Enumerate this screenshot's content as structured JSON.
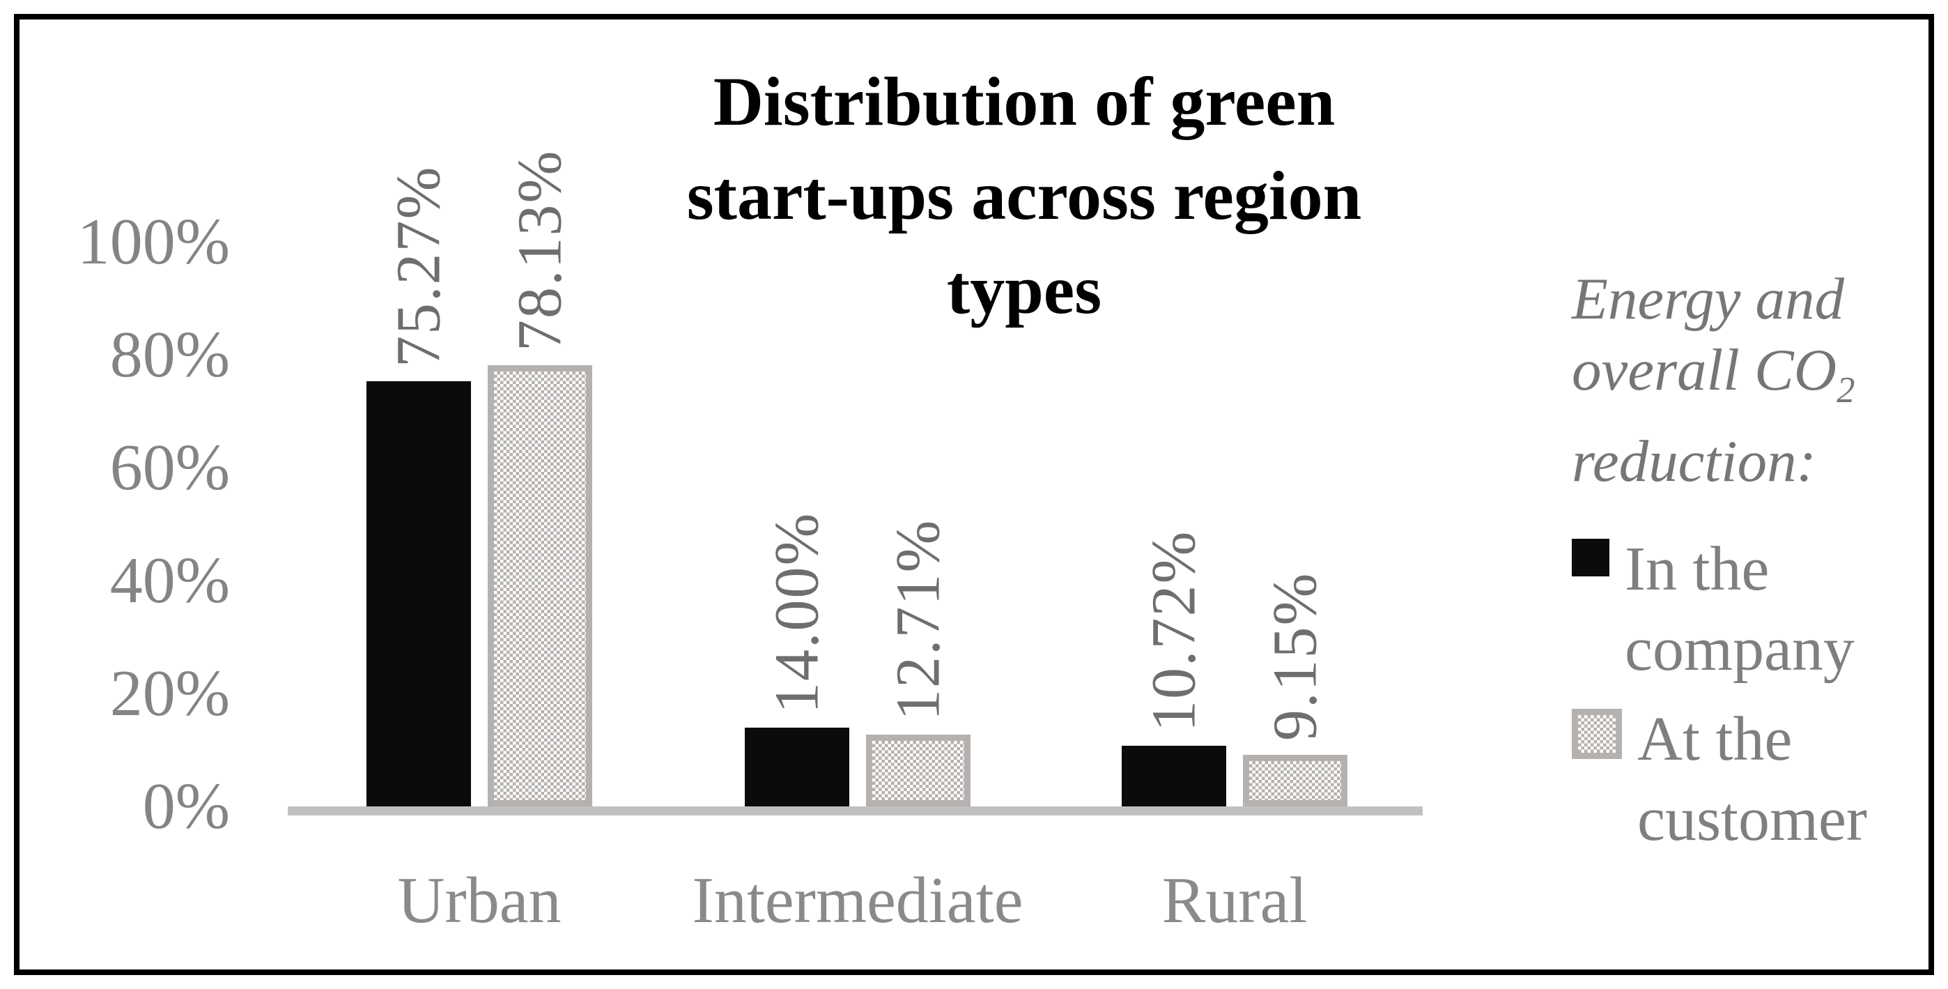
{
  "figure": {
    "background": "#ffffff",
    "border_color": "#000000"
  },
  "colors": {
    "bar_black": "#0b0b0b",
    "pattern_gray": "#b5b1ae",
    "baseline": "#c1c1c1",
    "axis_text": "#848484",
    "category_text": "#8a8a8a",
    "data_label_text": "#6e6e6e",
    "legend_text": "#7f7f7f",
    "legend_header_text": "#767676",
    "title_text": "#000000",
    "frame_color": "#000000"
  },
  "chart_data": {
    "type": "bar",
    "title": "Distribution of green start-ups across region types",
    "title_lines": [
      "Distribution of green",
      "start-ups across region",
      "types"
    ],
    "categories": [
      "Urban",
      "Intermediate",
      "Rural"
    ],
    "series": [
      {
        "name": "In the company",
        "style": "solid",
        "values": [
          75.27,
          14.0,
          10.72
        ],
        "data_labels": [
          "75.27%",
          "14.00%",
          "10.72%"
        ]
      },
      {
        "name": "At the customer",
        "style": "checkered",
        "values": [
          78.13,
          12.71,
          9.15
        ],
        "data_labels": [
          "78.13%",
          "12.71%",
          "9.15%"
        ]
      }
    ],
    "y_axis": {
      "min": 0,
      "max": 100,
      "ticks": [
        {
          "label": "100%",
          "value": 100
        },
        {
          "label": "80%",
          "value": 80
        },
        {
          "label": "60%",
          "value": 60
        },
        {
          "label": "40%",
          "value": 40
        },
        {
          "label": "20%",
          "value": 20
        },
        {
          "label": "0%",
          "value": 0
        }
      ]
    },
    "gridlines": false,
    "data_label_rotation_deg": 90,
    "legend": {
      "position": "right",
      "header_line1": "Energy and",
      "header_line2_pre": "overall CO",
      "header_line2_sub": "2",
      "header_line3": "reduction:",
      "items": [
        {
          "swatch": "solid",
          "label": "In the company",
          "label_lines": [
            "In the",
            "company"
          ]
        },
        {
          "swatch": "checkered",
          "label": "At the customer",
          "label_lines": [
            "At the",
            "customer"
          ]
        }
      ]
    }
  }
}
